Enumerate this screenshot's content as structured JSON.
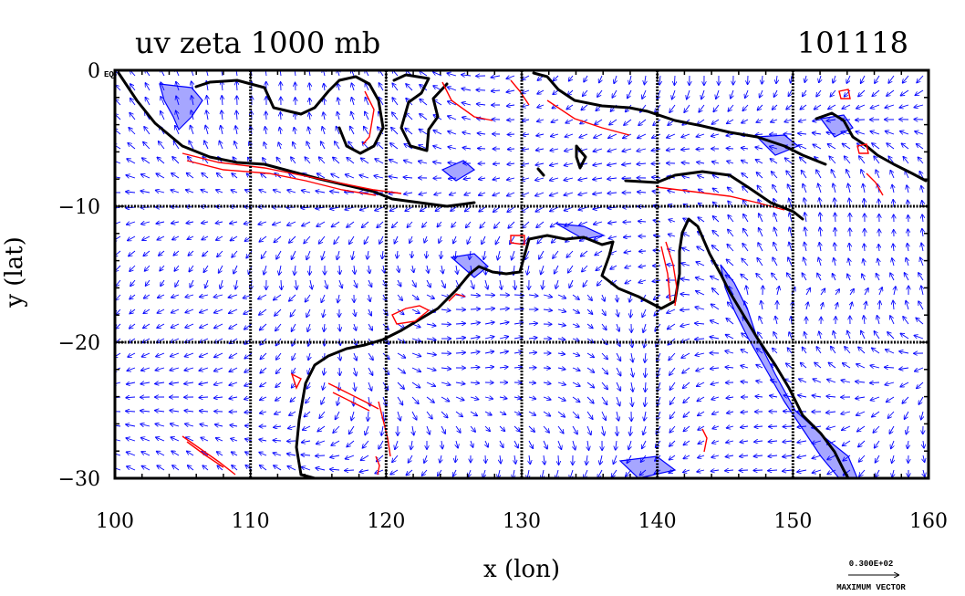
{
  "title_left": "uv zeta 1000 mb",
  "title_right": "101118",
  "chart_data": {
    "type": "map",
    "xlabel": "x (lon)",
    "ylabel": "y (lat)",
    "xlim": [
      100,
      160
    ],
    "ylim": [
      -30,
      0
    ],
    "x_ticks": [
      "100",
      "110",
      "120",
      "130",
      "140",
      "150",
      "160"
    ],
    "y_ticks": [
      {
        "value": 0,
        "label": "0"
      },
      {
        "value": -10,
        "label": "−10"
      },
      {
        "value": -20,
        "label": "−20"
      },
      {
        "value": -30,
        "label": "−30"
      }
    ],
    "y_tick_suffix": "EQ",
    "grid_x": [
      110,
      120,
      130,
      140,
      150
    ],
    "grid_y": [
      -10,
      -20
    ],
    "grid": true,
    "vector_color": "#0000ff",
    "positive_contour_color": "#ff0000",
    "negative_fill_color": "#0000ff",
    "coastline_color": "#000000",
    "reference_vector": {
      "value": "0.300E+02",
      "label": "MAXIMUM VECTOR"
    }
  }
}
